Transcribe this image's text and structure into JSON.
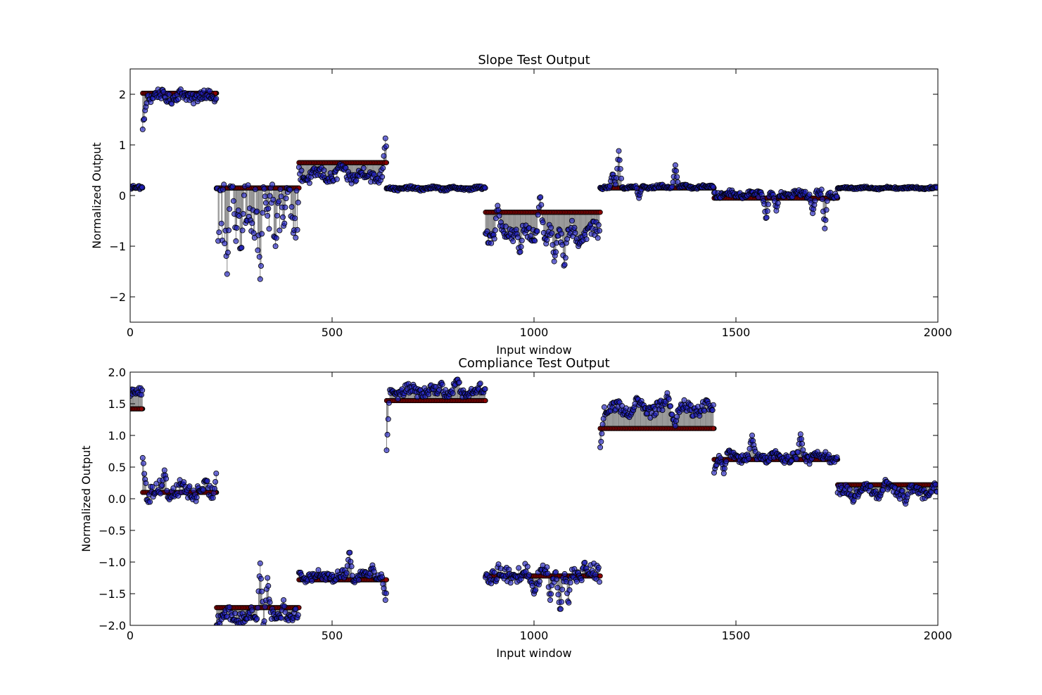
{
  "chart_data": [
    {
      "type": "scatter",
      "title": "Slope Test Output",
      "xlabel": "Input window",
      "ylabel": "Normalized Output",
      "xlim": [
        0,
        2000
      ],
      "ylim": [
        -2.5,
        2.5
      ],
      "xticks": [
        0,
        500,
        1000,
        1500,
        2000
      ],
      "yticks": [
        -2,
        -1,
        0,
        1,
        2
      ],
      "xtick_labels": [
        "0",
        "500",
        "1000",
        "1500",
        "2000"
      ],
      "ytick_labels": [
        "−2",
        "−1",
        "0",
        "1",
        "2"
      ],
      "grid": false,
      "legend": "none",
      "series": [
        {
          "role": "target",
          "color": "#8b0000",
          "segments": [
            {
              "x0": 0,
              "x1": 31,
              "y": 0.15
            },
            {
              "x0": 31,
              "x1": 214,
              "y": 2.02
            },
            {
              "x0": 214,
              "x1": 418,
              "y": 0.15
            },
            {
              "x0": 418,
              "x1": 635,
              "y": 0.65
            },
            {
              "x0": 635,
              "x1": 880,
              "y": 0.15
            },
            {
              "x0": 880,
              "x1": 1164,
              "y": -0.33
            },
            {
              "x0": 1164,
              "x1": 1446,
              "y": 0.15
            },
            {
              "x0": 1446,
              "x1": 1752,
              "y": -0.05
            },
            {
              "x0": 1752,
              "x1": 2000,
              "y": 0.15
            }
          ]
        },
        {
          "role": "output",
          "color": "#1f1fbf",
          "segments": [
            {
              "x0": 0,
              "x1": 31,
              "mean": 0.15,
              "spread": 0.04,
              "dir": 0,
              "peaks": []
            },
            {
              "x0": 31,
              "x1": 214,
              "mean": 1.96,
              "spread": 0.1,
              "dir": 0,
              "ramp": [
                1.35,
                12
              ],
              "peaks": []
            },
            {
              "x0": 214,
              "x1": 418,
              "mean": 0.15,
              "spread": 0.05,
              "dir": -1,
              "peaks": [
                [
                  240,
                  -1.55
                ],
                [
                  262,
                  -0.9
                ],
                [
                  275,
                  -1.2
                ],
                [
                  300,
                  -0.7
                ],
                [
                  322,
                  -1.65
                ],
                [
                  340,
                  -0.4
                ],
                [
                  360,
                  -1.0
                ],
                [
                  380,
                  -0.6
                ],
                [
                  405,
                  -0.8
                ]
              ]
            },
            {
              "x0": 418,
              "x1": 635,
              "mean": 0.4,
              "spread": 0.12,
              "dir": 0,
              "peaks": [
                [
                  632,
                  1.13
                ],
                [
                  520,
                  0.62
                ]
              ]
            },
            {
              "x0": 635,
              "x1": 880,
              "mean": 0.14,
              "spread": 0.03,
              "dir": 0,
              "peaks": []
            },
            {
              "x0": 880,
              "x1": 1164,
              "mean": -0.72,
              "spread": 0.15,
              "dir": 0,
              "peaks": [
                [
                  965,
                  -1.18
                ],
                [
                  1030,
                  -0.95
                ],
                [
                  1075,
                  -1.47
                ],
                [
                  1050,
                  -1.3
                ],
                [
                  910,
                  -0.2
                ],
                [
                  1015,
                  0.05
                ],
                [
                  1110,
                  -1.0
                ]
              ]
            },
            {
              "x0": 1164,
              "x1": 1446,
              "mean": 0.17,
              "spread": 0.03,
              "dir": 0,
              "peaks": [
                [
                  1210,
                  0.88
                ],
                [
                  1195,
                  0.45
                ],
                [
                  1350,
                  0.6
                ],
                [
                  1260,
                  -0.05
                ]
              ]
            },
            {
              "x0": 1446,
              "x1": 1752,
              "mean": 0.03,
              "spread": 0.06,
              "dir": 0,
              "peaks": [
                [
                  1575,
                  -0.5
                ],
                [
                  1690,
                  -0.35
                ],
                [
                  1720,
                  -0.65
                ],
                [
                  1600,
                  -0.3
                ]
              ]
            },
            {
              "x0": 1752,
              "x1": 2000,
              "mean": 0.15,
              "spread": 0.02,
              "dir": 0,
              "peaks": []
            }
          ]
        }
      ]
    },
    {
      "type": "scatter",
      "title": "Compliance Test Output",
      "xlabel": "Input window",
      "ylabel": "Normalized Output",
      "xlim": [
        0,
        2000
      ],
      "ylim": [
        -2.0,
        2.0
      ],
      "xticks": [
        0,
        500,
        1000,
        1500,
        2000
      ],
      "yticks": [
        -2.0,
        -1.5,
        -1.0,
        -0.5,
        0.0,
        0.5,
        1.0,
        1.5,
        2.0
      ],
      "xtick_labels": [
        "0",
        "500",
        "1000",
        "1500",
        "2000"
      ],
      "ytick_labels": [
        "−2.0",
        "−1.5",
        "−1.0",
        "−0.5",
        "0.0",
        "0.5",
        "1.0",
        "1.5",
        "2.0"
      ],
      "grid": false,
      "legend": "none",
      "series": [
        {
          "role": "target",
          "color": "#8b0000",
          "segments": [
            {
              "x0": 0,
              "x1": 31,
              "y": 1.42
            },
            {
              "x0": 31,
              "x1": 214,
              "y": 0.1
            },
            {
              "x0": 214,
              "x1": 418,
              "y": -1.72
            },
            {
              "x0": 418,
              "x1": 635,
              "y": -1.28
            },
            {
              "x0": 635,
              "x1": 880,
              "y": 1.55
            },
            {
              "x0": 880,
              "x1": 1164,
              "y": -1.22
            },
            {
              "x0": 1164,
              "x1": 1446,
              "y": 1.11
            },
            {
              "x0": 1446,
              "x1": 1752,
              "y": 0.62
            },
            {
              "x0": 1752,
              "x1": 2000,
              "y": 0.22
            }
          ]
        },
        {
          "role": "output",
          "color": "#1f1fbf",
          "segments": [
            {
              "x0": 0,
              "x1": 31,
              "mean": 1.68,
              "spread": 0.06,
              "dir": 0,
              "peaks": []
            },
            {
              "x0": 31,
              "x1": 214,
              "mean": 0.12,
              "spread": 0.12,
              "dir": 0,
              "ramp": [
                0.6,
                10
              ],
              "peaks": [
                [
                  85,
                  0.45
                ],
                [
                  214,
                  0.45
                ]
              ]
            },
            {
              "x0": 214,
              "x1": 418,
              "mean": -1.86,
              "spread": 0.1,
              "dir": 0,
              "peaks": [
                [
                  322,
                  -1.02
                ],
                [
                  340,
                  -1.25
                ],
                [
                  380,
                  -1.6
                ]
              ]
            },
            {
              "x0": 418,
              "x1": 635,
              "mean": -1.22,
              "spread": 0.07,
              "dir": 0,
              "peaks": [
                [
                  543,
                  -0.8
                ],
                [
                  600,
                  -1.05
                ],
                [
                  632,
                  -1.6
                ]
              ]
            },
            {
              "x0": 635,
              "x1": 880,
              "mean": 1.7,
              "spread": 0.08,
              "dir": 0,
              "ramp": [
                0.8,
                8
              ],
              "peaks": [
                [
                  810,
                  1.9
                ],
                [
                  770,
                  1.85
                ]
              ]
            },
            {
              "x0": 880,
              "x1": 1164,
              "mean": -1.2,
              "spread": 0.12,
              "dir": 0,
              "peaks": [
                [
                  1065,
                  -1.8
                ],
                [
                  1040,
                  -1.6
                ],
                [
                  1000,
                  -1.5
                ],
                [
                  1125,
                  -0.98
                ],
                [
                  1085,
                  -1.7
                ]
              ]
            },
            {
              "x0": 1164,
              "x1": 1446,
              "mean": 1.42,
              "spread": 0.09,
              "dir": 0,
              "ramp": [
                0.8,
                10
              ],
              "peaks": [
                [
                  1330,
                  1.67
                ],
                [
                  1350,
                  1.15
                ],
                [
                  1255,
                  1.6
                ]
              ]
            },
            {
              "x0": 1446,
              "x1": 1752,
              "mean": 0.66,
              "spread": 0.07,
              "dir": 0,
              "ramp": [
                0.4,
                10
              ],
              "peaks": [
                [
                  1540,
                  1.0
                ],
                [
                  1660,
                  1.02
                ],
                [
                  1470,
                  0.4
                ]
              ]
            },
            {
              "x0": 1752,
              "x1": 2000,
              "mean": 0.12,
              "spread": 0.08,
              "dir": 0,
              "peaks": [
                [
                  1790,
                  -0.05
                ],
                [
                  1920,
                  -0.08
                ],
                [
                  1870,
                  0.3
                ]
              ]
            }
          ]
        }
      ]
    }
  ]
}
